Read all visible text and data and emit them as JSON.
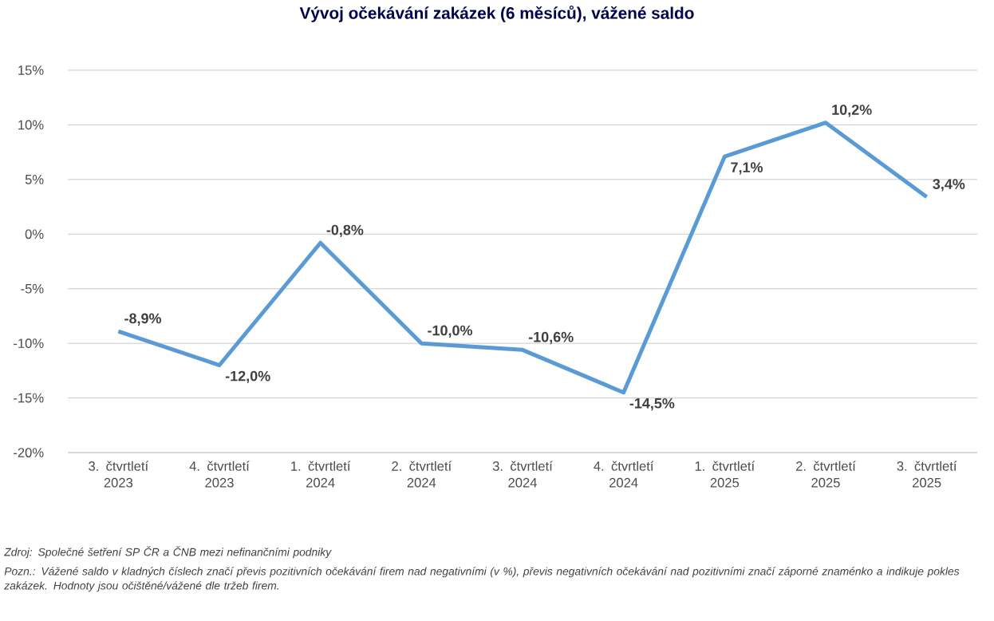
{
  "chart_data": {
    "type": "line",
    "title": "Vývoj očekávání zakázek (6 měsíců), vážené saldo",
    "categories": [
      "3. čtvrtletí 2023",
      "4. čtvrtletí 2023",
      "1. čtvrtletí 2024",
      "2. čtvrtletí 2024",
      "3. čtvrtletí 2024",
      "4. čtvrtletí 2024",
      "1. čtvrtletí 2025",
      "2. čtvrtletí 2025",
      "3. čtvrtletí 2025"
    ],
    "series": [
      {
        "color": "#5b9bd5",
        "values": [
          -8.9,
          -12.0,
          -0.8,
          -10.0,
          -10.6,
          -14.5,
          7.1,
          10.2,
          3.4
        ],
        "value_labels": [
          "-8,9%",
          "-12,0%",
          "-0,8%",
          "-10,0%",
          "-10,6%",
          "-14,5%",
          "7,1%",
          "10,2%",
          "3,4%"
        ]
      }
    ],
    "ylim": [
      -20,
      15
    ],
    "yticks": [
      {
        "value": 15,
        "label": "15%"
      },
      {
        "value": 10,
        "label": "10%"
      },
      {
        "value": 5,
        "label": "5%"
      },
      {
        "value": 0,
        "label": "0%"
      },
      {
        "value": -5,
        "label": "-5%"
      },
      {
        "value": -10,
        "label": "-10%"
      },
      {
        "value": -15,
        "label": "-15%"
      },
      {
        "value": -20,
        "label": "-20%"
      }
    ],
    "grid": "y",
    "legend": false,
    "marker": "none",
    "line_style": "solid",
    "annotations": [
      "Zdroj: Společné šetření SP ČR a ČNB mezi nefinančními podniky",
      "Pozn.: Vážené saldo v kladných číslech značí převis pozitivních očekávání firem nad negativními (v %), převis negativních očekávání nad pozitivními značí záporné znaménko a indikuje pokles zakázek. Hodnoty jsou očištěné/vážené dle tržeb firem."
    ]
  }
}
